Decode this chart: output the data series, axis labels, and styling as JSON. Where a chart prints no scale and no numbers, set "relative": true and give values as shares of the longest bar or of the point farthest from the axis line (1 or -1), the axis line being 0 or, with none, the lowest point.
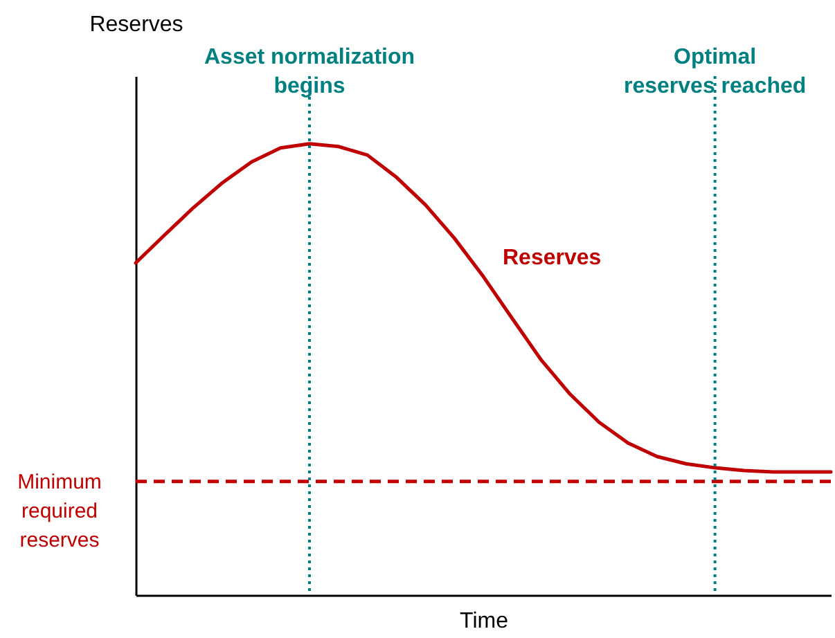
{
  "chart_data": {
    "type": "line",
    "relative": true,
    "xlabel": "Time",
    "ylabel": "Reserves",
    "legend": false,
    "annotations": [
      "Asset normalization begins",
      "Optimal reserves reached"
    ],
    "marker": "none",
    "line_style": "solid",
    "categories": [
      null,
      null,
      null,
      null,
      null,
      null,
      null,
      null,
      null,
      null,
      null,
      null,
      null,
      null,
      null,
      null,
      null,
      null,
      null,
      null,
      null,
      null,
      null,
      null,
      null
    ],
    "series": [
      {
        "name": "Reserves",
        "color": "#c00000",
        "values": [
          0.736,
          0.798,
          0.859,
          0.914,
          0.96,
          0.991,
          1,
          0.994,
          0.975,
          0.926,
          0.865,
          0.791,
          0.706,
          0.613,
          0.521,
          0.445,
          0.383,
          0.337,
          0.307,
          0.291,
          0.282,
          0.276,
          0.273,
          0.273,
          0.273
        ]
      }
    ],
    "ref_lines": [
      {
        "axis": "y",
        "value": 0.252,
        "label": "Minimum required reserves",
        "color": "#c00000",
        "line_style": "dashed"
      }
    ]
  }
}
